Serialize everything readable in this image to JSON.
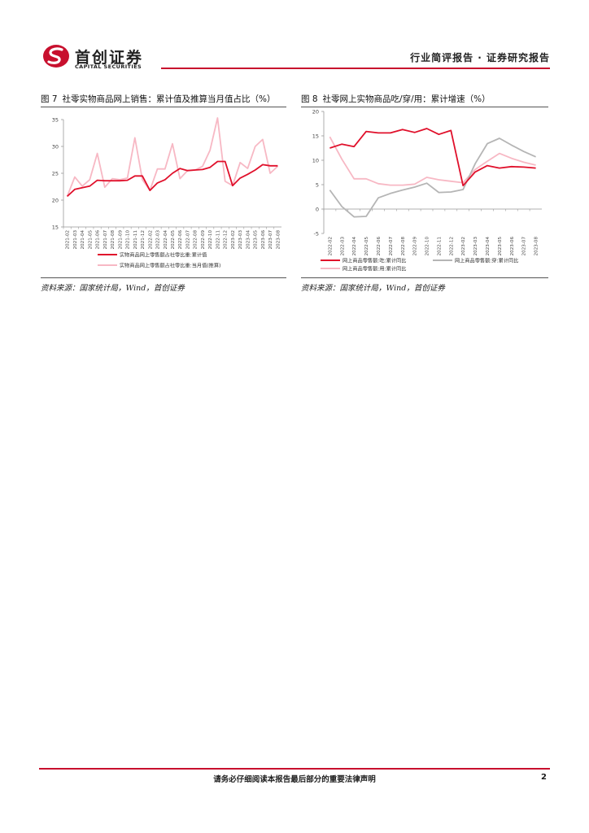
{
  "header": {
    "logo_cn": "首创证券",
    "logo_en": "CAPITAL SECURITIES",
    "report_type": "行业简评报告 · 证券研究报告"
  },
  "colors": {
    "brand_red": "#c8102e",
    "series_red": "#e0102b",
    "series_pink": "#f7b8c4",
    "series_gray": "#b5b5b5"
  },
  "figure7": {
    "number": "图 7",
    "title": "社零实物商品网上销售：累计值及推算当月值占比（%）",
    "source": "资料来源：国家统计局，Wind，首创证券"
  },
  "figure8": {
    "number": "图 8",
    "title": "社零网上实物商品吃/穿/用：累计增速（%）",
    "source": "资料来源：国家统计局，Wind，首创证券"
  },
  "chart_data": [
    {
      "type": "line",
      "title": "社零实物商品网上销售：累计值及推算当月值占比（%）",
      "ylim": [
        15,
        35
      ],
      "yticks": [
        15,
        20,
        25,
        30,
        35
      ],
      "grid": false,
      "legend": "bottom",
      "x": [
        "2021-02",
        "2021-03",
        "2021-04",
        "2021-05",
        "2021-06",
        "2021-07",
        "2021-08",
        "2021-09",
        "2021-10",
        "2021-11",
        "2021-12",
        "2022-02",
        "2022-03",
        "2022-04",
        "2022-05",
        "2022-06",
        "2022-07",
        "2022-08",
        "2022-09",
        "2022-10",
        "2022-11",
        "2022-12",
        "2023-02",
        "2023-03",
        "2023-04",
        "2023-05",
        "2023-06",
        "2023-07",
        "2023-08"
      ],
      "series": [
        {
          "name": "实物商品网上零售额占社零比重:累计值",
          "color": "#e0102b",
          "values": [
            20.7,
            22.0,
            22.3,
            22.6,
            23.7,
            23.6,
            23.6,
            23.6,
            23.7,
            24.5,
            24.5,
            21.8,
            23.2,
            23.8,
            25.0,
            25.9,
            25.5,
            25.6,
            25.7,
            26.1,
            27.2,
            27.2,
            22.7,
            24.1,
            24.8,
            25.6,
            26.6,
            26.4,
            26.4
          ]
        },
        {
          "name": "实物商品网上零售额占社零比重:当月值(推算)",
          "color": "#f7b8c4",
          "values": [
            20.7,
            24.3,
            22.6,
            23.8,
            28.7,
            22.4,
            24.0,
            23.8,
            24.1,
            31.6,
            23.8,
            21.8,
            25.8,
            25.8,
            30.5,
            24.0,
            25.5,
            25.6,
            26.3,
            29.3,
            35.3,
            23.5,
            22.7,
            27.0,
            25.9,
            30.0,
            31.3,
            25.0,
            26.3
          ]
        }
      ]
    },
    {
      "type": "line",
      "title": "社零网上实物商品吃/穿/用：累计增速（%）",
      "ylim": [
        -5,
        20
      ],
      "yticks": [
        -5,
        0,
        5,
        10,
        15,
        20
      ],
      "grid": false,
      "legend": "bottom",
      "x": [
        "2022-02",
        "2022-03",
        "2022-04",
        "2022-05",
        "2022-06",
        "2022-07",
        "2022-08",
        "2022-09",
        "2022-10",
        "2022-11",
        "2022-12",
        "2023-02",
        "2023-03",
        "2023-04",
        "2023-05",
        "2023-06",
        "2023-07",
        "2023-08"
      ],
      "series": [
        {
          "name": "网上商品零售额:吃:累计同比",
          "color": "#e0102b",
          "values": [
            12.5,
            13.3,
            12.8,
            15.9,
            15.6,
            15.6,
            16.3,
            15.7,
            16.5,
            15.3,
            16.1,
            4.8,
            7.6,
            8.9,
            8.4,
            8.7,
            8.6,
            8.4
          ]
        },
        {
          "name": "网上商品零售额:穿:累计同比",
          "color": "#b5b5b5",
          "values": [
            3.9,
            0.5,
            -1.6,
            -1.5,
            2.3,
            3.2,
            3.9,
            4.5,
            5.3,
            3.4,
            3.5,
            4.0,
            9.3,
            13.4,
            14.5,
            13.1,
            11.8,
            10.7
          ]
        },
        {
          "name": "网上商品零售额:用:累计同比",
          "color": "#f7b8c4",
          "values": [
            14.8,
            10.2,
            6.2,
            6.2,
            5.2,
            4.9,
            4.9,
            5.1,
            6.5,
            6.0,
            5.7,
            5.4,
            8.1,
            9.8,
            11.4,
            10.4,
            9.6,
            9.0
          ]
        }
      ]
    }
  ],
  "footer": {
    "disclaimer": "请务必仔细阅读本报告最后部分的重要法律声明",
    "page": "2"
  }
}
